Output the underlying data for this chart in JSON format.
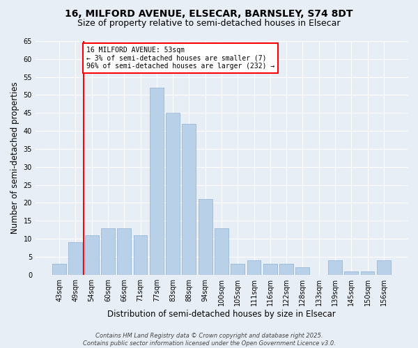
{
  "title_line1": "16, MILFORD AVENUE, ELSECAR, BARNSLEY, S74 8DT",
  "title_line2": "Size of property relative to semi-detached houses in Elsecar",
  "xlabel": "Distribution of semi-detached houses by size in Elsecar",
  "ylabel": "Number of semi-detached properties",
  "categories": [
    "43sqm",
    "49sqm",
    "54sqm",
    "60sqm",
    "66sqm",
    "71sqm",
    "77sqm",
    "83sqm",
    "88sqm",
    "94sqm",
    "100sqm",
    "105sqm",
    "111sqm",
    "116sqm",
    "122sqm",
    "128sqm",
    "133sqm",
    "139sqm",
    "145sqm",
    "150sqm",
    "156sqm"
  ],
  "values": [
    3,
    9,
    11,
    13,
    13,
    11,
    52,
    45,
    42,
    21,
    13,
    3,
    4,
    3,
    3,
    2,
    0,
    4,
    1,
    1,
    4
  ],
  "bar_color": "#b8d0e8",
  "bar_edgecolor": "#9ab8d8",
  "red_line_x": 1.5,
  "annotation_line1": "16 MILFORD AVENUE: 53sqm",
  "annotation_line2": "← 3% of semi-detached houses are smaller (7)",
  "annotation_line3": "96% of semi-detached houses are larger (232) →",
  "ylim": [
    0,
    65
  ],
  "yticks": [
    0,
    5,
    10,
    15,
    20,
    25,
    30,
    35,
    40,
    45,
    50,
    55,
    60,
    65
  ],
  "footer": "Contains HM Land Registry data © Crown copyright and database right 2025.\nContains public sector information licensed under the Open Government Licence v3.0.",
  "bg_color": "#e8eef6",
  "plot_bg_color": "#e8eef6",
  "grid_color": "#ffffff",
  "title_fontsize": 10,
  "subtitle_fontsize": 9,
  "tick_fontsize": 7,
  "label_fontsize": 8.5
}
